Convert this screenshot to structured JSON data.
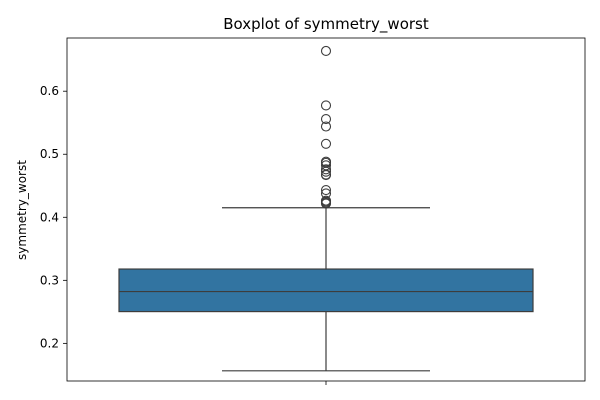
{
  "chart_data": {
    "type": "boxplot",
    "title": "Boxplot of symmetry_worst",
    "xlabel": "",
    "ylabel": "symmetry_worst",
    "ylim": [
      0.1403,
      0.6844
    ],
    "yticks": [
      0.2,
      0.3,
      0.4,
      0.5,
      0.6
    ],
    "ytick_labels": [
      "0.2",
      "0.3",
      "0.4",
      "0.5",
      "0.6"
    ],
    "grid": false,
    "box": {
      "q1": 0.2504,
      "median": 0.2822,
      "q3": 0.3179,
      "whisker_low": 0.1565,
      "whisker_high": 0.4151,
      "color": "#3274a1",
      "edge_color": "#3d3d3d"
    },
    "outliers": [
      0.6638,
      0.5774,
      0.5558,
      0.544,
      0.5166,
      0.4882,
      0.4863,
      0.4824,
      0.4761,
      0.4724,
      0.4677,
      0.467,
      0.4432,
      0.4378,
      0.4264,
      0.4245,
      0.4228,
      0.4218
    ]
  }
}
